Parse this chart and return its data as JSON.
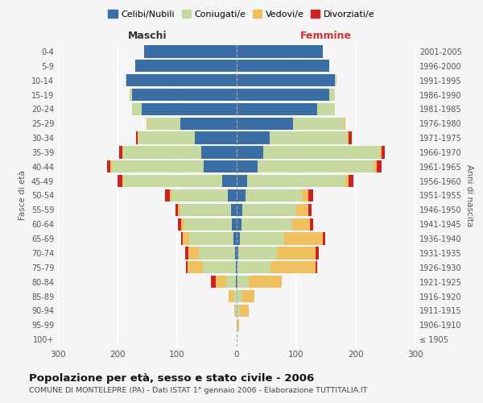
{
  "age_groups": [
    "100+",
    "95-99",
    "90-94",
    "85-89",
    "80-84",
    "75-79",
    "70-74",
    "65-69",
    "60-64",
    "55-59",
    "50-54",
    "45-49",
    "40-44",
    "35-39",
    "30-34",
    "25-29",
    "20-24",
    "15-19",
    "10-14",
    "5-9",
    "0-4"
  ],
  "birth_years": [
    "≤ 1905",
    "1906-1910",
    "1911-1915",
    "1916-1920",
    "1921-1925",
    "1926-1930",
    "1931-1935",
    "1936-1940",
    "1941-1945",
    "1946-1950",
    "1951-1955",
    "1956-1960",
    "1961-1965",
    "1966-1970",
    "1971-1975",
    "1976-1980",
    "1981-1985",
    "1986-1990",
    "1991-1995",
    "1996-2000",
    "2001-2005"
  ],
  "maschi": {
    "celibi": [
      0,
      0,
      0,
      0,
      2,
      2,
      3,
      5,
      8,
      10,
      15,
      25,
      55,
      60,
      70,
      95,
      160,
      175,
      185,
      170,
      155
    ],
    "coniugati": [
      0,
      0,
      2,
      5,
      15,
      55,
      60,
      75,
      80,
      85,
      95,
      165,
      155,
      130,
      95,
      55,
      15,
      5,
      2,
      0,
      0
    ],
    "vedovi": [
      0,
      0,
      2,
      8,
      18,
      25,
      18,
      10,
      5,
      3,
      2,
      2,
      2,
      2,
      1,
      1,
      0,
      0,
      0,
      0,
      0
    ],
    "divorziati": [
      0,
      0,
      0,
      0,
      8,
      3,
      5,
      3,
      5,
      5,
      8,
      8,
      5,
      5,
      3,
      0,
      0,
      0,
      0,
      0,
      0
    ]
  },
  "femmine": {
    "nubili": [
      0,
      0,
      0,
      0,
      2,
      2,
      3,
      5,
      8,
      10,
      15,
      18,
      35,
      45,
      55,
      95,
      135,
      155,
      165,
      155,
      145
    ],
    "coniugate": [
      0,
      2,
      5,
      10,
      18,
      55,
      65,
      75,
      85,
      90,
      95,
      165,
      195,
      195,
      130,
      85,
      30,
      10,
      2,
      0,
      0
    ],
    "vedove": [
      0,
      2,
      15,
      20,
      55,
      75,
      65,
      65,
      30,
      20,
      10,
      5,
      5,
      3,
      3,
      2,
      0,
      0,
      0,
      0,
      0
    ],
    "divorziate": [
      0,
      0,
      0,
      0,
      0,
      3,
      5,
      3,
      5,
      5,
      8,
      8,
      8,
      5,
      5,
      0,
      0,
      0,
      0,
      0,
      0
    ]
  },
  "colors": {
    "celibi": "#3A6EA5",
    "coniugati": "#C5D9A0",
    "vedovi": "#F0C060",
    "divorziati": "#CC2222"
  },
  "xlim": 300,
  "title": "Popolazione per età, sesso e stato civile - 2006",
  "subtitle": "COMUNE DI MONTELEPRE (PA) - Dati ISTAT 1° gennaio 2006 - Elaborazione TUTTITALIA.IT",
  "ylabel_left": "Fasce di età",
  "ylabel_right": "Anni di nascita",
  "xlabel_maschi": "Maschi",
  "xlabel_femmine": "Femmine",
  "legend_labels": [
    "Celibi/Nubili",
    "Coniugati/e",
    "Vedovi/e",
    "Divorziati/e"
  ],
  "bg_color": "#F5F5F5",
  "bar_height": 0.85
}
